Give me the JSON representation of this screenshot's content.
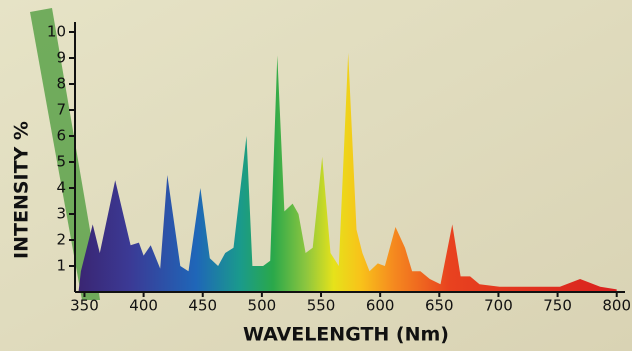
{
  "chart_data": {
    "type": "area",
    "x_label": "WAVELENGTH (Nm)",
    "y_label": "INTENSITY %",
    "x": [
      345,
      347,
      357,
      363,
      376,
      389,
      396,
      400,
      406,
      414,
      420,
      431,
      438,
      448,
      456,
      463,
      469,
      476,
      487,
      492,
      501,
      507,
      513,
      519,
      526,
      531,
      537,
      543,
      551,
      558,
      565,
      573,
      580,
      585,
      591,
      598,
      604,
      613,
      621,
      627,
      634,
      642,
      651,
      661,
      668,
      676,
      684,
      701,
      718,
      752,
      769,
      786,
      800
    ],
    "y": [
      0,
      0.8,
      2.6,
      1.5,
      4.3,
      1.8,
      1.9,
      1.4,
      1.8,
      0.9,
      4.5,
      1.0,
      0.8,
      4.0,
      1.3,
      1.0,
      1.5,
      1.7,
      6.0,
      1.0,
      1.0,
      1.2,
      9.1,
      3.1,
      3.4,
      3.0,
      1.5,
      1.7,
      5.2,
      1.5,
      1.0,
      9.2,
      2.4,
      1.5,
      0.8,
      1.1,
      1.0,
      2.5,
      1.7,
      0.8,
      0.8,
      0.5,
      0.3,
      2.6,
      0.6,
      0.6,
      0.3,
      0.2,
      0.2,
      0.2,
      0.5,
      0.2,
      0.1
    ],
    "xlim": [
      342,
      807
    ],
    "ylim": [
      0,
      10
    ],
    "xticks": [
      350,
      400,
      450,
      500,
      550,
      600,
      650,
      700,
      750,
      800
    ],
    "yticks": [
      1,
      2,
      3,
      4,
      5,
      6,
      7,
      8,
      9,
      10
    ]
  }
}
